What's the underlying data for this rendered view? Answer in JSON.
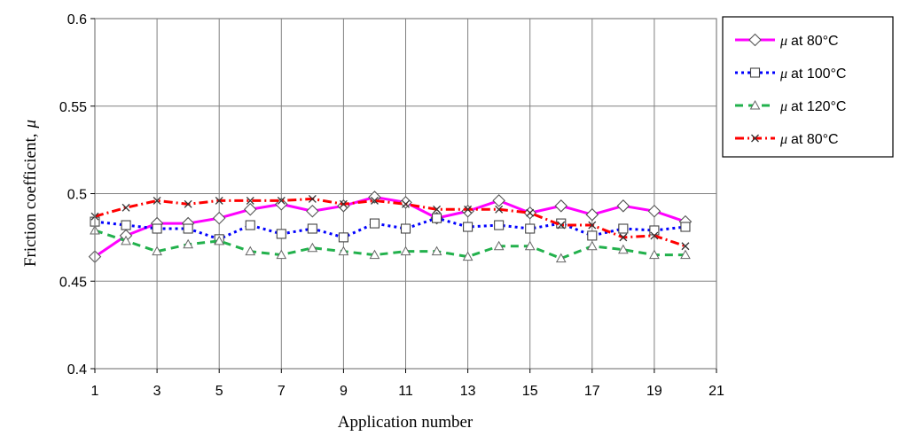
{
  "chart_data": {
    "type": "line",
    "xlabel": "Application number",
    "ylabel_text": "Friction coefficient,",
    "ylabel_symbol": "μ",
    "xlim": [
      1,
      21
    ],
    "ylim": [
      0.4,
      0.6
    ],
    "x_ticks": [
      "1",
      "3",
      "5",
      "7",
      "9",
      "11",
      "13",
      "15",
      "17",
      "19",
      "21"
    ],
    "y_ticks": [
      "0.4",
      "0.45",
      "0.5",
      "0.55",
      "0.6"
    ],
    "grid": true,
    "legend_position": "top-right-outside",
    "x": [
      1,
      2,
      3,
      4,
      5,
      6,
      7,
      8,
      9,
      10,
      11,
      12,
      13,
      14,
      15,
      16,
      17,
      18,
      19,
      20
    ],
    "series": [
      {
        "name": "μ at 80°C",
        "symbol": "μ",
        "label_rest": "at 80°C",
        "color": "#ff00ff",
        "dash": "solid",
        "marker": "diamond",
        "values": [
          0.464,
          0.476,
          0.483,
          0.483,
          0.486,
          0.491,
          0.494,
          0.49,
          0.493,
          0.498,
          0.495,
          0.486,
          0.49,
          0.496,
          0.489,
          0.493,
          0.488,
          0.493,
          0.49,
          0.484
        ]
      },
      {
        "name": "μ at 100°C",
        "symbol": "μ",
        "label_rest": "at 100°C",
        "color": "#0000ff",
        "dash": "dot",
        "marker": "square",
        "values": [
          0.484,
          0.482,
          0.48,
          0.48,
          0.474,
          0.482,
          0.477,
          0.48,
          0.475,
          0.483,
          0.48,
          0.486,
          0.481,
          0.482,
          0.48,
          0.483,
          0.476,
          0.48,
          0.479,
          0.481
        ]
      },
      {
        "name": "μ at 120°C",
        "symbol": "μ",
        "label_rest": "at 120°C",
        "color": "#22b14c",
        "dash": "dash",
        "marker": "triangle",
        "values": [
          0.479,
          0.473,
          0.467,
          0.471,
          0.473,
          0.467,
          0.465,
          0.469,
          0.467,
          0.465,
          0.467,
          0.467,
          0.464,
          0.47,
          0.47,
          0.463,
          0.47,
          0.468,
          0.465,
          0.465
        ]
      },
      {
        "name": "μ at 80°C",
        "symbol": "μ",
        "label_rest": "at 80°C",
        "color": "#ff0000",
        "dash": "dashdot",
        "marker": "x",
        "values": [
          0.487,
          0.492,
          0.496,
          0.494,
          0.496,
          0.496,
          0.496,
          0.497,
          0.494,
          0.496,
          0.494,
          0.491,
          0.491,
          0.491,
          0.489,
          0.482,
          0.482,
          0.475,
          0.476,
          0.47
        ]
      }
    ]
  }
}
